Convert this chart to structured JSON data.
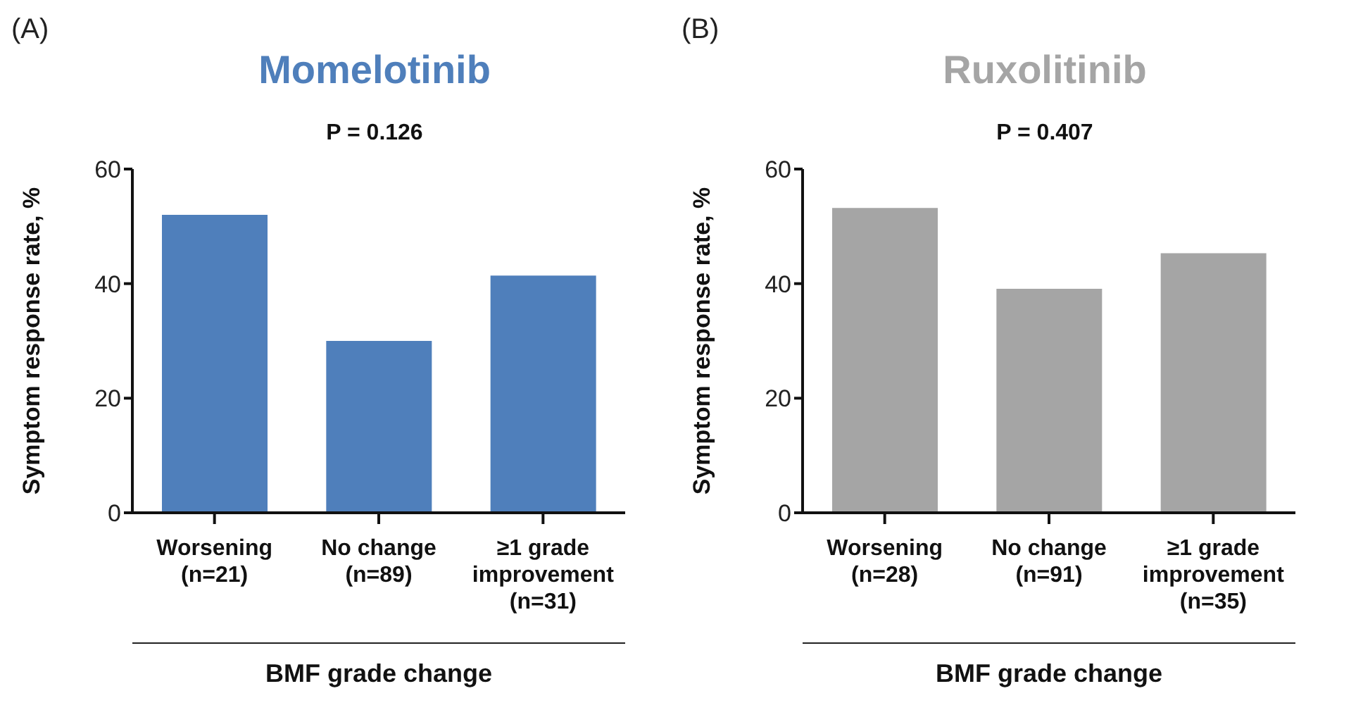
{
  "chart_data": [
    {
      "type": "bar",
      "title": "Momelotinib",
      "subtitle": "P = 0.126",
      "annotations": [
        "(A)"
      ],
      "xlabel": "BMF grade change",
      "ylabel": "Symptom response rate, %",
      "categories": [
        "Worsening\n(n=21)",
        "No change\n(n=89)",
        "≥1 grade\nimprovement\n(n=31)"
      ],
      "series": [
        {
          "color": "#4f7fbb",
          "values": [
            52,
            30,
            41.4
          ]
        }
      ],
      "ylim": [
        0,
        60
      ],
      "yticks": [
        0,
        20,
        40,
        60
      ],
      "grid": false,
      "legend": false
    },
    {
      "type": "bar",
      "title": "Ruxolitinib",
      "subtitle": "P = 0.407",
      "annotations": [
        "(B)"
      ],
      "xlabel": "BMF grade change",
      "ylabel": "Symptom response rate, %",
      "categories": [
        "Worsening\n(n=28)",
        "No change\n(n=91)",
        "≥1 grade\nimprovement\n(n=35)"
      ],
      "series": [
        {
          "color": "#a5a5a5",
          "values": [
            53.2,
            39.1,
            45.3
          ]
        }
      ],
      "ylim": [
        0,
        60
      ],
      "yticks": [
        0,
        20,
        40,
        60
      ],
      "grid": false,
      "legend": false
    }
  ]
}
